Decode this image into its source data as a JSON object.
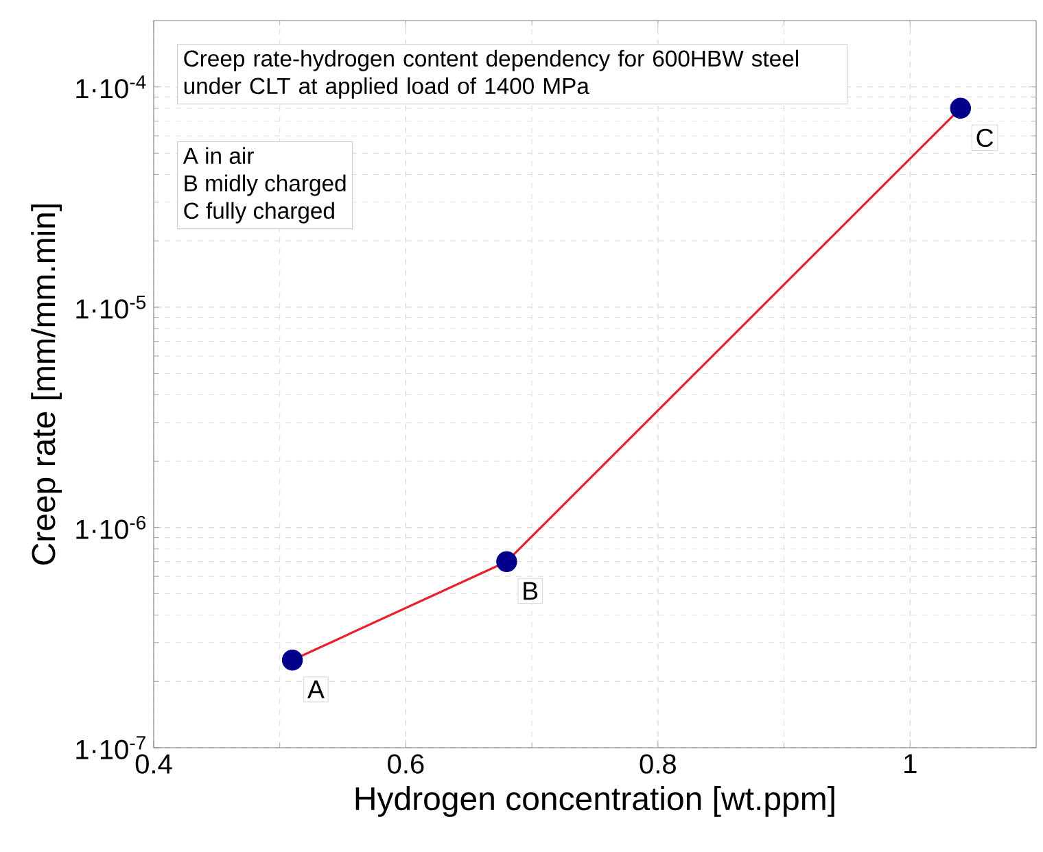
{
  "chart_data": {
    "type": "line",
    "title": "Creep rate-hydrogen content dependency for 600HBW steel under CLT at applied load of 1400 MPa",
    "xlabel": "Hydrogen concentration [wt.ppm]",
    "ylabel": "Creep rate [mm/mm.min]",
    "x": [
      0.51,
      0.68,
      1.04
    ],
    "series": [
      {
        "color": "#e8202a",
        "colors": [
          "#00008b",
          "#00008b",
          "#00008b"
        ],
        "values": [
          2.5e-07,
          7e-07,
          8e-05
        ]
      }
    ],
    "marker": "circle",
    "log": "y",
    "xlim": [
      0.4,
      1.1
    ],
    "ylim": [
      1e-07,
      0.0002
    ],
    "xticks": [
      0.4,
      0.6,
      0.8,
      1
    ],
    "yticks": [
      {
        "value": 1e-07,
        "label": "1·10$^{-7}$"
      },
      {
        "value": 1e-06,
        "label": "1·10$^{-6}$"
      },
      {
        "value": 1e-05,
        "label": "1·10$^{-5}$"
      },
      {
        "value": 0.0001,
        "label": "1·10$^{-4}$"
      }
    ],
    "grid": true,
    "annotations": [
      "A  in air",
      "B  midly charged",
      "C  fully charged",
      {
        "text": "A",
        "x": 0.51,
        "y": 2.5e-07
      },
      {
        "text": "B",
        "x": 0.68,
        "y": 7e-07
      },
      {
        "text": "C",
        "x": 1.04,
        "y": 8e-05
      }
    ]
  }
}
